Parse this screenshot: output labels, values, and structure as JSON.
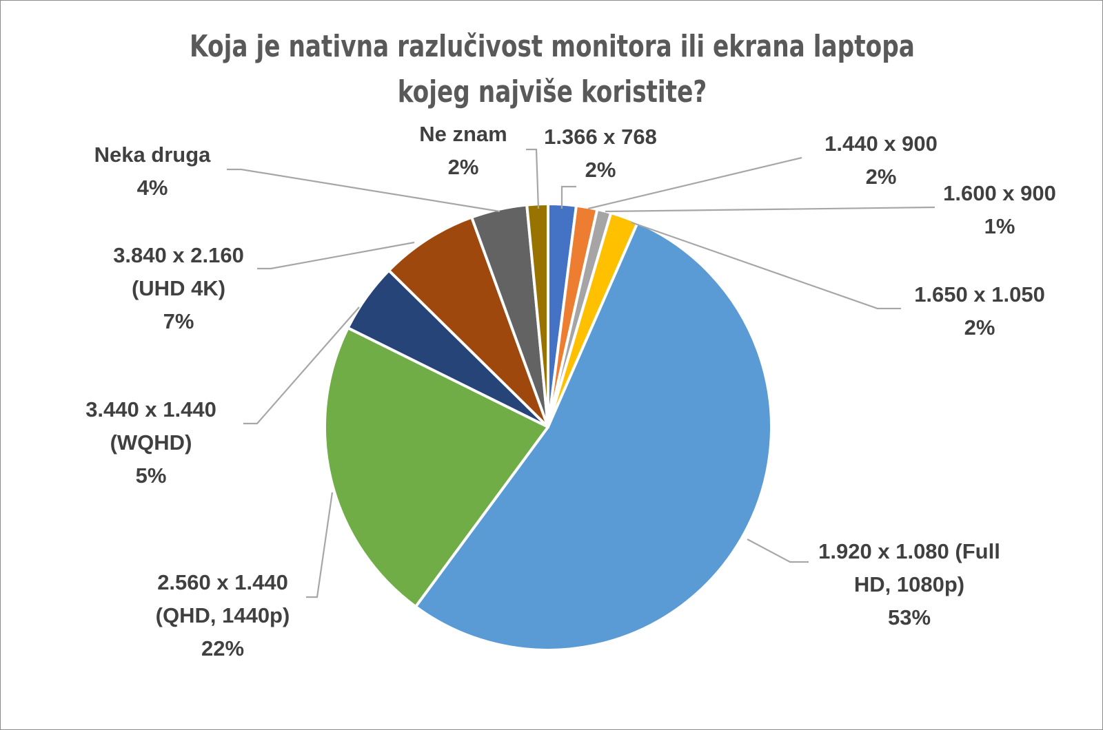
{
  "chart_data": {
    "type": "pie",
    "title": [
      "Koja je nativna razlučivost monitora ili ekrana laptopa",
      "kojeg najviše koristite?"
    ],
    "slices": [
      {
        "label": [
          "1.366 x 768"
        ],
        "value_label": "2%",
        "value": 2,
        "color": "#4472C4"
      },
      {
        "label": [
          "1.440 x 900"
        ],
        "value_label": "2%",
        "value": 1.5,
        "color": "#ED7D31"
      },
      {
        "label": [
          "1.600 x 900"
        ],
        "value_label": "1%",
        "value": 1,
        "color": "#A5A5A5"
      },
      {
        "label": [
          "1.650 x 1.050"
        ],
        "value_label": "2%",
        "value": 2,
        "color": "#FFC000"
      },
      {
        "label": [
          "1.920 x 1.080 (Full",
          "HD, 1080p)"
        ],
        "value_label": "53%",
        "value": 53,
        "color": "#5B9BD5"
      },
      {
        "label": [
          "2.560 x 1.440",
          "(QHD, 1440p)"
        ],
        "value_label": "22%",
        "value": 22,
        "color": "#70AD47"
      },
      {
        "label": [
          "3.440 x 1.440",
          "(WQHD)"
        ],
        "value_label": "5%",
        "value": 5,
        "color": "#264478"
      },
      {
        "label": [
          "3.840 x 2.160",
          "(UHD 4K)"
        ],
        "value_label": "7%",
        "value": 7,
        "color": "#9E480E"
      },
      {
        "label": [
          "Neka druga"
        ],
        "value_label": "4%",
        "value": 4,
        "color": "#636363"
      },
      {
        "label": [
          "Ne znam"
        ],
        "value_label": "2%",
        "value": 1.5,
        "color": "#997300"
      }
    ],
    "legend": "none"
  }
}
